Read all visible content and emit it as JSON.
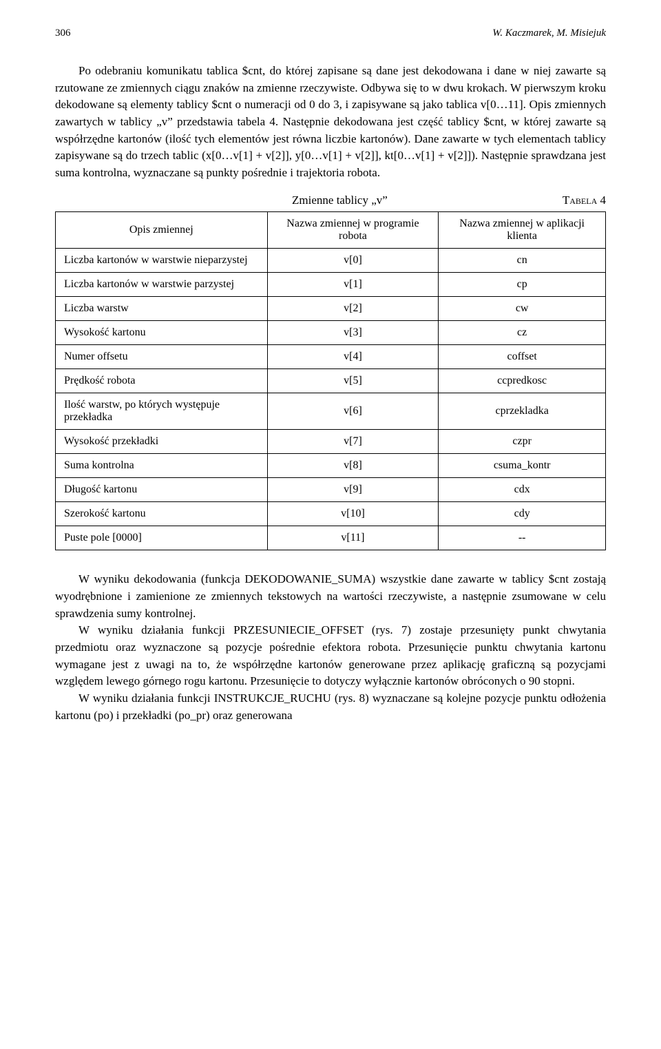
{
  "header": {
    "page_number": "306",
    "authors": "W. Kaczmarek, M. Misiejuk"
  },
  "paragraphs": {
    "p1": "Po odebraniu komunikatu tablica $cnt, do której zapisane są dane jest dekodowana i dane w niej zawarte są rzutowane ze zmiennych ciągu znaków na zmienne rzeczywiste. Odbywa się to w dwu krokach. W pierwszym kroku dekodowane są elementy tablicy $cnt o numeracji od 0 do 3, i zapisywane są jako tablica v[0…11]. Opis zmiennych zawartych w tablicy „v” przedstawia tabela 4. Następnie dekodowana jest część tablicy $cnt, w której zawarte są współrzędne kartonów (ilość tych elementów jest równa liczbie kartonów). Dane zawarte w tych elementach tablicy zapisywane są do trzech tablic (x[0…v[1] + v[2]], y[0…v[1] + v[2]], kt[0…v[1] + v[2]]). Następnie sprawdzana jest suma kontrolna, wyznaczane są punkty pośrednie i trajektoria robota.",
    "p2": "W wyniku dekodowania (funkcja DEKODOWANIE_SUMA) wszystkie dane zawarte w tablicy $cnt zostają wyodrębnione i zamienione ze zmiennych tekstowych na wartości rzeczywiste, a następnie zsumowane w celu sprawdzenia sumy kontrolnej.",
    "p3": "W wyniku działania funkcji PRZESUNIECIE_OFFSET (rys. 7) zostaje przesunięty punkt chwytania przedmiotu oraz wyznaczone są pozycje pośrednie efektora robota. Przesunięcie punktu chwytania kartonu wymagane jest z uwagi na to, że współrzędne kartonów generowane przez aplikację graficzną są pozycjami względem lewego górnego rogu kartonu. Przesunięcie to dotyczy wyłącznie kartonów obróconych o 90 stopni.",
    "p4": "W wyniku działania funkcji INSTRUKCJE_RUCHU (rys. 8) wyznaczane są kolejne pozycje punktu odłożenia kartonu (po) i przekładki (po_pr) oraz generowana"
  },
  "table": {
    "caption": "Zmienne tablicy „v”",
    "label": "Tabela 4",
    "columns": {
      "c1": "Opis zmiennej",
      "c2": "Nazwa zmiennej w programie robota",
      "c3": "Nazwa zmiennej w aplikacji klienta"
    },
    "rows": [
      {
        "c1": "Liczba kartonów w warstwie nieparzystej",
        "c2": "v[0]",
        "c3": "cn"
      },
      {
        "c1": "Liczba kartonów w warstwie parzystej",
        "c2": "v[1]",
        "c3": "cp"
      },
      {
        "c1": "Liczba warstw",
        "c2": "v[2]",
        "c3": "cw"
      },
      {
        "c1": "Wysokość kartonu",
        "c2": "v[3]",
        "c3": "cz"
      },
      {
        "c1": "Numer offsetu",
        "c2": "v[4]",
        "c3": "coffset"
      },
      {
        "c1": "Prędkość robota",
        "c2": "v[5]",
        "c3": "ccpredkosc"
      },
      {
        "c1": "Ilość warstw, po których występuje przekładka",
        "c2": "v[6]",
        "c3": "cprzekladka"
      },
      {
        "c1": "Wysokość przekładki",
        "c2": "v[7]",
        "c3": "czpr"
      },
      {
        "c1": "Suma kontrolna",
        "c2": "v[8]",
        "c3": "csuma_kontr"
      },
      {
        "c1": "Długość kartonu",
        "c2": "v[9]",
        "c3": "cdx"
      },
      {
        "c1": "Szerokość kartonu",
        "c2": "v[10]",
        "c3": "cdy"
      },
      {
        "c1": "Puste pole [0000]",
        "c2": "v[11]",
        "c3": "--"
      }
    ]
  }
}
